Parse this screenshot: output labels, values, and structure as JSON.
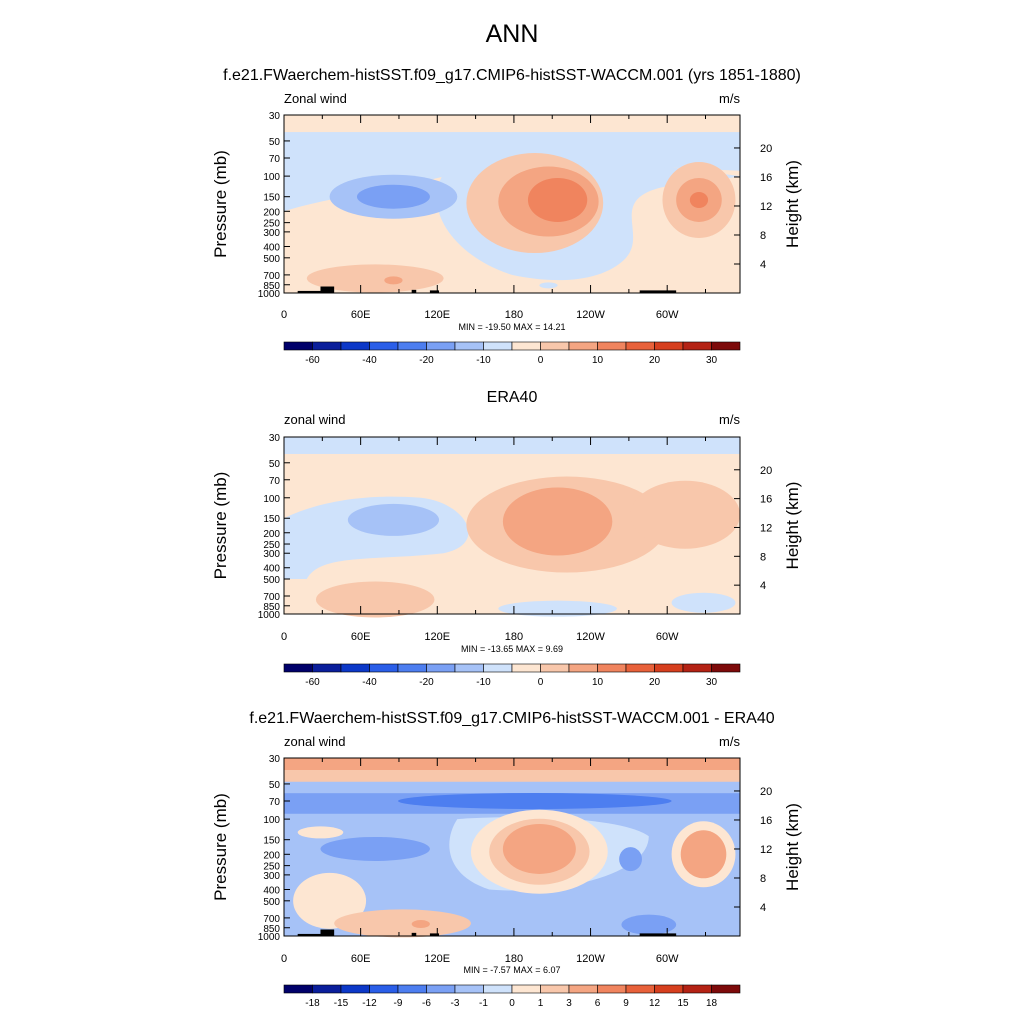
{
  "figure": {
    "title": "ANN"
  },
  "chart_data": [
    {
      "type": "heatmap",
      "title": "f.e21.FWaerchem-histSST.f09_g17.CMIP6-histSST-WACCM.001 (yrs 1851-1880)",
      "left_label": "Zonal wind",
      "right_label": "m/s",
      "xlabel": "",
      "ylabel": "Pressure (mb)",
      "ylabel_right": "Height (km)",
      "x_ticks": [
        "0",
        "60E",
        "120E",
        "180",
        "120W",
        "60W"
      ],
      "y_ticks": [
        "30",
        "50",
        "70",
        "100",
        "150",
        "200",
        "250",
        "300",
        "400",
        "500",
        "700",
        "850",
        "1000"
      ],
      "y_ticks_right": [
        "20",
        "16",
        "12",
        "8",
        "4"
      ],
      "xlim": [
        0,
        357
      ],
      "ylim": [
        1000,
        30
      ],
      "y_scale": "log",
      "stats": "MIN = -19.50  MAX =  14.21",
      "min": -19.5,
      "max": 14.21,
      "colorbar_labels": [
        "-60",
        "-40",
        "-20",
        "-10",
        "0",
        "10",
        "20",
        "30"
      ],
      "colorbar_colors": [
        "#00006a",
        "#0a1e9b",
        "#0c38c8",
        "#2a5ee8",
        "#4d7ef0",
        "#7aa0f4",
        "#a6c2f7",
        "#cfe2fb",
        "#fde6d2",
        "#f8c7ab",
        "#f4a582",
        "#f0845e",
        "#e8613a",
        "#d63f1e",
        "#b42214",
        "#7d0a0a"
      ]
    },
    {
      "type": "heatmap",
      "title": "ERA40",
      "left_label": "zonal wind",
      "right_label": "m/s",
      "xlabel": "",
      "ylabel": "Pressure (mb)",
      "ylabel_right": "Height (km)",
      "x_ticks": [
        "0",
        "60E",
        "120E",
        "180",
        "120W",
        "60W"
      ],
      "y_ticks": [
        "30",
        "50",
        "70",
        "100",
        "150",
        "200",
        "250",
        "300",
        "400",
        "500",
        "700",
        "850",
        "1000"
      ],
      "y_ticks_right": [
        "20",
        "16",
        "12",
        "8",
        "4"
      ],
      "xlim": [
        0,
        357
      ],
      "ylim": [
        1000,
        30
      ],
      "y_scale": "log",
      "stats": "MIN = -13.65  MAX =   9.69",
      "min": -13.65,
      "max": 9.69,
      "colorbar_labels": [
        "-60",
        "-40",
        "-20",
        "-10",
        "0",
        "10",
        "20",
        "30"
      ],
      "colorbar_colors": [
        "#00006a",
        "#0a1e9b",
        "#0c38c8",
        "#2a5ee8",
        "#4d7ef0",
        "#7aa0f4",
        "#a6c2f7",
        "#cfe2fb",
        "#fde6d2",
        "#f8c7ab",
        "#f4a582",
        "#f0845e",
        "#e8613a",
        "#d63f1e",
        "#b42214",
        "#7d0a0a"
      ]
    },
    {
      "type": "heatmap",
      "title": "f.e21.FWaerchem-histSST.f09_g17.CMIP6-histSST-WACCM.001 - ERA40",
      "left_label": "zonal wind",
      "right_label": "m/s",
      "xlabel": "",
      "ylabel": "Pressure (mb)",
      "ylabel_right": "Height (km)",
      "x_ticks": [
        "0",
        "60E",
        "120E",
        "180",
        "120W",
        "60W"
      ],
      "y_ticks": [
        "30",
        "50",
        "70",
        "100",
        "150",
        "200",
        "250",
        "300",
        "400",
        "500",
        "700",
        "850",
        "1000"
      ],
      "y_ticks_right": [
        "20",
        "16",
        "12",
        "8",
        "4"
      ],
      "xlim": [
        0,
        357
      ],
      "ylim": [
        1000,
        30
      ],
      "y_scale": "log",
      "stats": "MIN =  -7.57  MAX =   6.07",
      "min": -7.57,
      "max": 6.07,
      "colorbar_labels": [
        "-18",
        "-15",
        "-12",
        "-9",
        "-6",
        "-3",
        "-1",
        "0",
        "1",
        "3",
        "6",
        "9",
        "12",
        "15",
        "18"
      ],
      "colorbar_colors": [
        "#00006a",
        "#0a1e9b",
        "#0c38c8",
        "#2a5ee8",
        "#4d7ef0",
        "#7aa0f4",
        "#a6c2f7",
        "#cfe2fb",
        "#fde6d2",
        "#f8c7ab",
        "#f4a582",
        "#f0845e",
        "#e8613a",
        "#d63f1e",
        "#b42214",
        "#7d0a0a"
      ]
    }
  ]
}
